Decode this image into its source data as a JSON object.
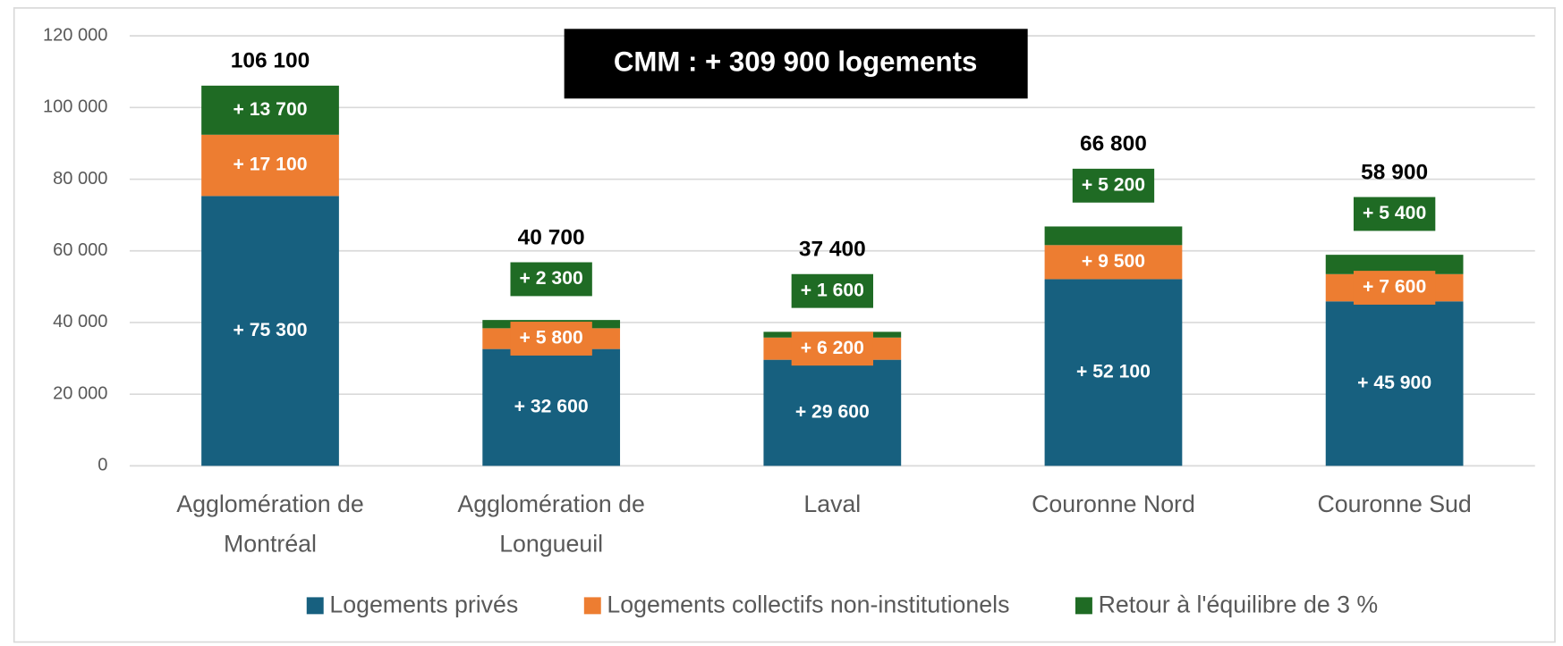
{
  "chart_data": {
    "type": "stacked_bar",
    "title": "CMM : + 309 900 logements",
    "categories": [
      "Agglomération de Montréal",
      "Agglomération de Longueuil",
      "Laval",
      "Couronne Nord",
      "Couronne Sud"
    ],
    "series": [
      {
        "name": "Logements privés",
        "color": "#17607f",
        "values": [
          75300,
          32600,
          29600,
          52100,
          45900
        ],
        "value_labels": [
          "+ 75 300",
          "+ 32 600",
          "+ 29 600",
          "+ 52 100",
          "+ 45 900"
        ]
      },
      {
        "name": "Logements collectifs non-institutionels",
        "color": "#ed7d31",
        "values": [
          17100,
          5800,
          6200,
          9500,
          7600
        ],
        "value_labels": [
          "+ 17 100",
          "+ 5 800",
          "+ 6 200",
          "+ 9 500",
          "+ 7 600"
        ]
      },
      {
        "name": "Retour à l'équilibre de 3 %",
        "color": "#1f6b24",
        "values": [
          13700,
          2300,
          1600,
          5200,
          5400
        ],
        "value_labels": [
          "+ 13 700",
          "+ 2 300",
          "+ 1 600",
          "+ 5 200",
          "+ 5 400"
        ]
      }
    ],
    "totals": {
      "values": [
        106100,
        40700,
        37400,
        66800,
        58900
      ],
      "value_labels": [
        "106 100",
        "40 700",
        "37 400",
        "66 800",
        "58 900"
      ]
    },
    "ylim": [
      0,
      120000
    ],
    "yticks": [
      0,
      {
        "value": 20000,
        "label": "20 000"
      },
      {
        "value": 40000,
        "label": "40 000"
      },
      {
        "value": 60000,
        "label": "60 000"
      },
      {
        "value": 80000,
        "label": "80 000"
      },
      {
        "value": 100000,
        "label": "100 000"
      },
      {
        "value": 120000,
        "label": "120 000"
      }
    ],
    "grid": true,
    "legend": "bottom"
  }
}
